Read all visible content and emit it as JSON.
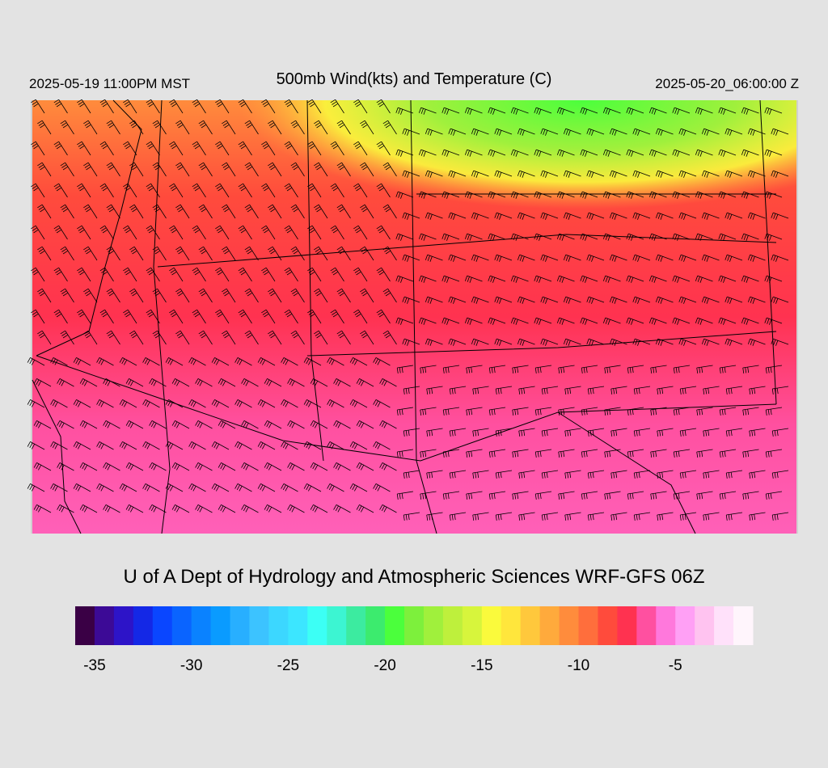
{
  "header": {
    "title": "500mb Wind(kts) and Temperature (C)",
    "valid_local": "2025-05-19 11:00PM MST",
    "valid_utc": "2025-05-20_06:00:00 Z"
  },
  "footer": {
    "credit": "U of A Dept of Hydrology and Atmospheric Sciences WRF-GFS 06Z"
  },
  "colorbar": {
    "lim": [
      -36,
      -1
    ],
    "ticks": [
      -35,
      -30,
      -25,
      -20,
      -15,
      -10,
      -5
    ],
    "colors": [
      "#3a0045",
      "#3c0a96",
      "#2d14c8",
      "#1428e6",
      "#0a46ff",
      "#0a64ff",
      "#0a82ff",
      "#0a9bff",
      "#28afff",
      "#3cc3ff",
      "#3cd7ff",
      "#3ce6ff",
      "#3cfff5",
      "#3cf5d2",
      "#3ceba0",
      "#3ceb6e",
      "#4bff3c",
      "#7df03c",
      "#a0f03c",
      "#bef03c",
      "#d7f53c",
      "#fafa3c",
      "#ffe63c",
      "#ffc83c",
      "#ffaa3c",
      "#ff8c3c",
      "#ff6e3c",
      "#ff4b3c",
      "#ff3250",
      "#ff50a0",
      "#ff78dc",
      "#ffa0f5",
      "#ffc3f0",
      "#ffe1fa",
      "#fff5fc"
    ]
  }
}
